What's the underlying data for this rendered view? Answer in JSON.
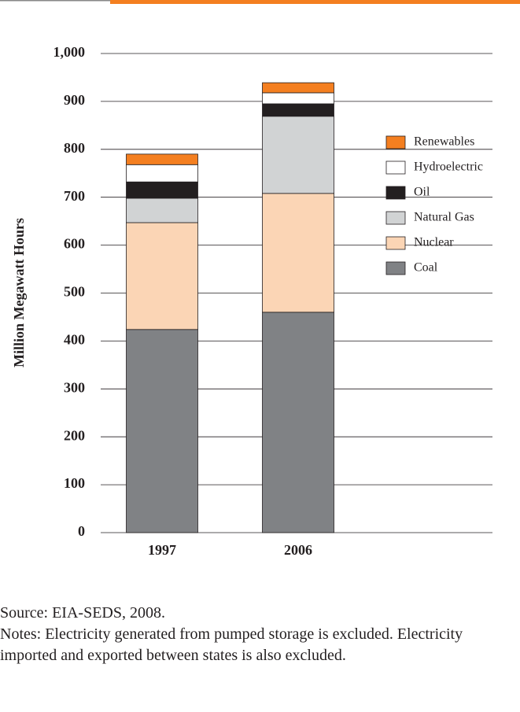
{
  "chart_data": {
    "type": "stacked-bar",
    "y_label": "Million Megawatt Hours",
    "categories": [
      "1997",
      "2006"
    ],
    "series": [
      {
        "name": "Coal",
        "color": "#808285",
        "values": [
          424,
          460
        ]
      },
      {
        "name": "Nuclear",
        "color": "#fbd5b5",
        "values": [
          223,
          248
        ]
      },
      {
        "name": "Natural Gas",
        "color": "#d1d3d4",
        "values": [
          51,
          161
        ]
      },
      {
        "name": "Oil",
        "color": "#231f20",
        "values": [
          34,
          26
        ]
      },
      {
        "name": "Hydroelectric",
        "color": "#ffffff",
        "values": [
          36,
          23
        ]
      },
      {
        "name": "Renewables",
        "color": "#f47f20",
        "values": [
          22,
          21
        ]
      }
    ],
    "ylim": [
      0,
      1000
    ],
    "yticks": [
      0,
      100,
      200,
      300,
      400,
      500,
      600,
      700,
      800,
      900,
      {
        "value": 1000,
        "label": "1,000"
      }
    ],
    "grid": true,
    "legend": "right"
  },
  "notes": [
    "Source: EIA-SEDS, 2008.",
    "Notes: Electricity generated from pumped storage is excluded. Electricity imported and exported between states is also excluded."
  ]
}
